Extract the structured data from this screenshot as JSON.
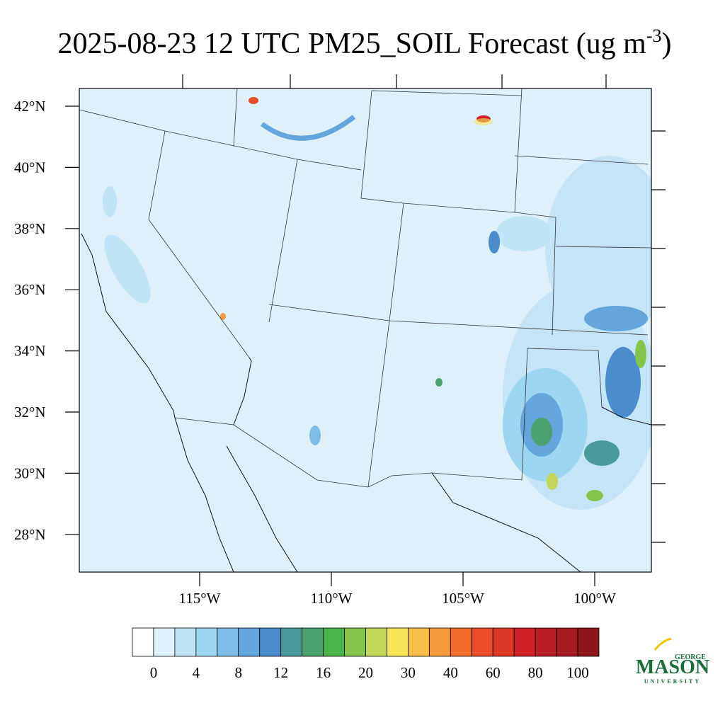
{
  "header": {
    "title": "2025-08-23 12 UTC PM25_SOIL Forecast (ug m",
    "title_superscript": "-3",
    "title_end": ")"
  },
  "map": {
    "lat_labels": [
      "42°N",
      "40°N",
      "38°N",
      "36°N",
      "34°N",
      "32°N",
      "30°N",
      "28°N"
    ],
    "lon_labels": [
      "115°W",
      "110°W",
      "105°W",
      "100°W"
    ]
  },
  "colorbar": {
    "colors": [
      "#ffffff",
      "#dff2fb",
      "#bfe5f7",
      "#9ed6f2",
      "#80bde6",
      "#64a5dc",
      "#4a8ccc",
      "#4a9a9c",
      "#4aa36e",
      "#4ab44a",
      "#86c54b",
      "#c2d655",
      "#f8e657",
      "#f7be48",
      "#f59a3a",
      "#f26c2c",
      "#e84c28",
      "#dd3826",
      "#d02128",
      "#b81e23",
      "#a31a1f",
      "#8c1619"
    ],
    "labels": [
      0,
      4,
      8,
      12,
      16,
      20,
      30,
      40,
      60,
      80,
      100
    ]
  },
  "logo": {
    "top": "GEORGE",
    "main": "MASON",
    "bottom": "UNIVERSITY"
  }
}
